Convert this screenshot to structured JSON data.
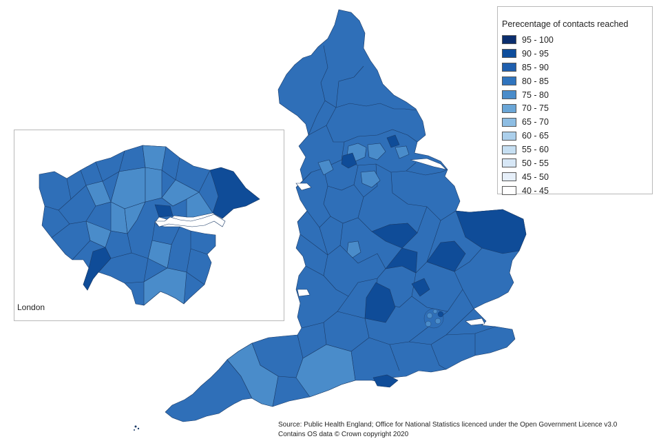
{
  "legend": {
    "title": "Perecentage of contacts reached",
    "items": [
      {
        "label": "95 - 100",
        "color": "#0b2e6e"
      },
      {
        "label": "90 - 95",
        "color": "#0d4d9c"
      },
      {
        "label": "85 - 90",
        "color": "#1f5fae"
      },
      {
        "label": "80 - 85",
        "color": "#2f74be"
      },
      {
        "label": "75 - 80",
        "color": "#4a8cca"
      },
      {
        "label": "70 - 75",
        "color": "#6aa6d7"
      },
      {
        "label": "65 - 70",
        "color": "#8dbde3"
      },
      {
        "label": "60 - 65",
        "color": "#abcfeb"
      },
      {
        "label": "55 - 60",
        "color": "#c6dff2"
      },
      {
        "label": "50 - 55",
        "color": "#d7e7f6"
      },
      {
        "label": "45 - 50",
        "color": "#e6eff9"
      },
      {
        "label": "40 - 45",
        "color": "#ffffff"
      }
    ]
  },
  "inset": {
    "label": "London"
  },
  "source": {
    "line1": "Source: Public Health England; Office for National Statistics licenced under the Open Government Licence v3.0",
    "line2": "Contains OS data © Crown copyright 2020"
  },
  "colors": {
    "main": "#2f6fb8",
    "dark": "#0f4c98",
    "light": "#4a8cca",
    "border": "#1a3a66",
    "sea": "#ffffff"
  }
}
